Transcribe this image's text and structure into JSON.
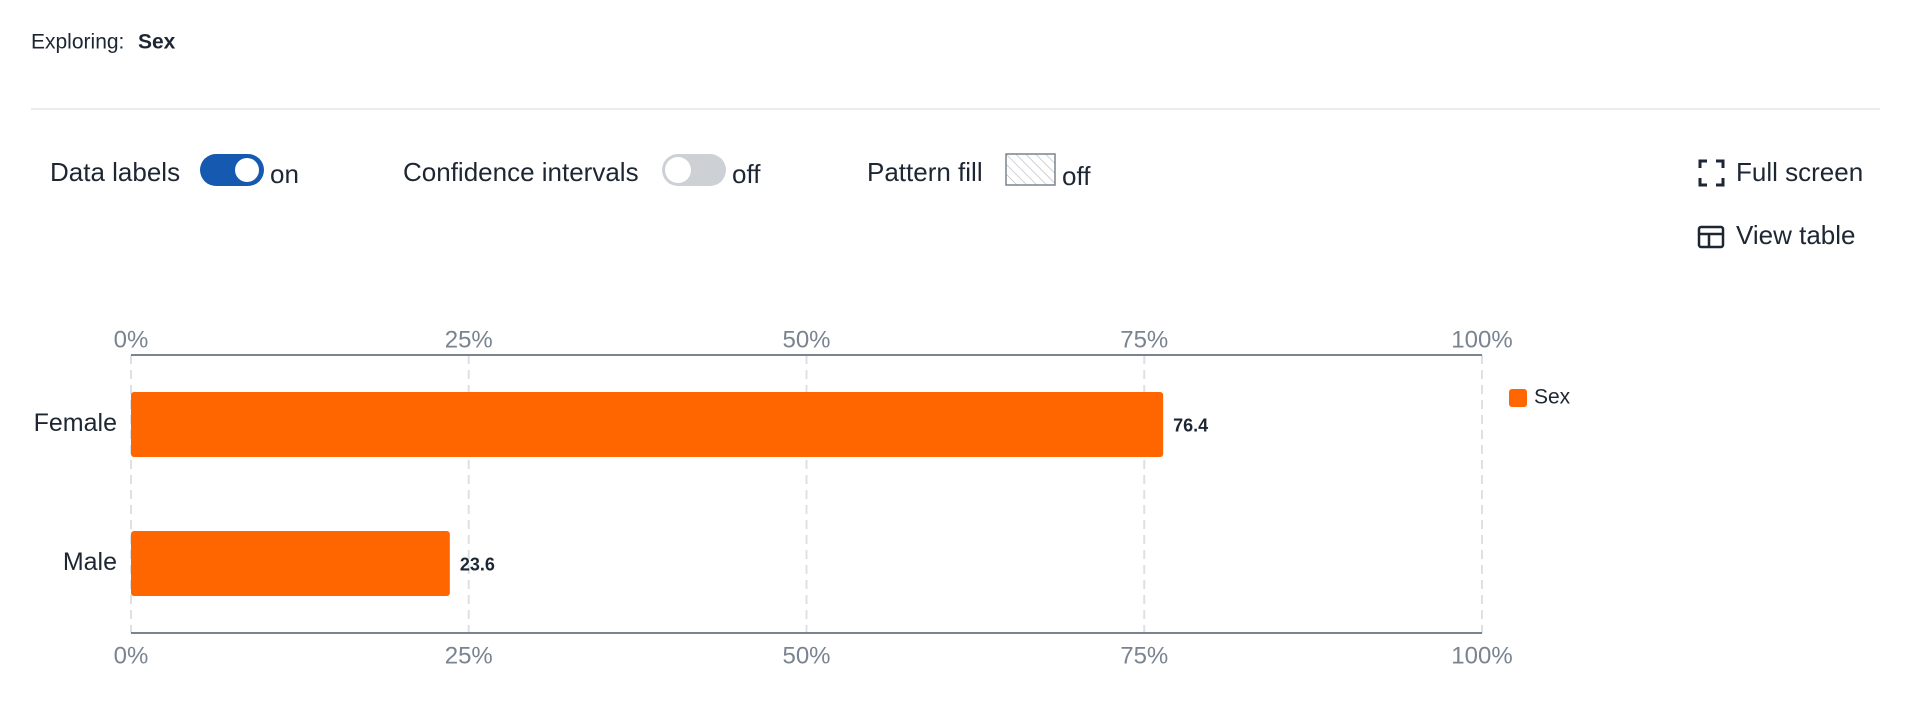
{
  "header": {
    "label": "Exploring:",
    "value": "Sex"
  },
  "controls": [
    {
      "label": "Data labels",
      "state": "on"
    },
    {
      "label": "Confidence intervals",
      "state": "off"
    },
    {
      "label": "Pattern fill",
      "state": "off"
    }
  ],
  "actions": [
    "Full screen",
    "View table"
  ],
  "chart_data": {
    "type": "hbar",
    "categories": [
      "Female",
      "Male"
    ],
    "series": [
      {
        "name": "Sex",
        "color": "#ff6600",
        "values": [
          76.4,
          23.6
        ]
      }
    ],
    "xlim": [
      0,
      100
    ],
    "xticks": [
      {
        "value": 0,
        "label": "0%"
      },
      {
        "value": 25,
        "label": "25%"
      },
      {
        "value": 50,
        "label": "50%"
      },
      {
        "value": 75,
        "label": "75%"
      },
      {
        "value": 100,
        "label": "100%"
      }
    ],
    "grid": true,
    "data_labels": true,
    "legend": "right"
  }
}
